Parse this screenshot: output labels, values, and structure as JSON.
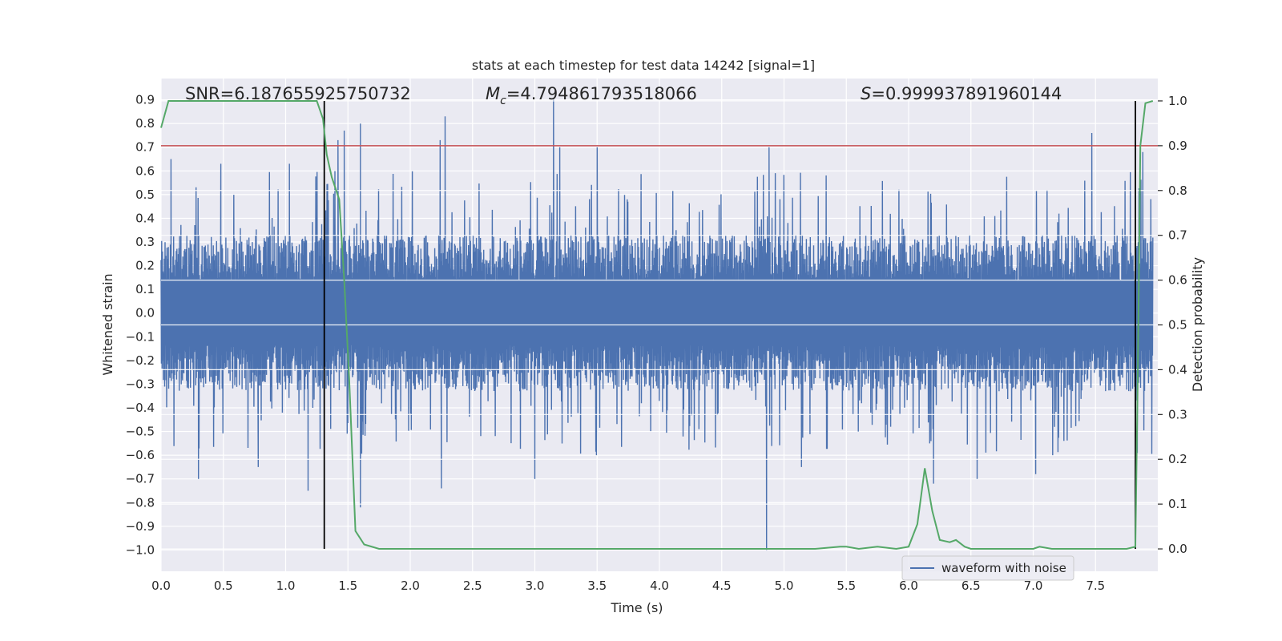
{
  "chart_data": {
    "type": "line",
    "title": "stats at each timestep for test data 14242 [signal=1]",
    "xlabel": "Time (s)",
    "ylabel_left": "Whitened strain",
    "ylabel_right": "Detection probability",
    "xlim": [
      0.0,
      8.0
    ],
    "ylim_left": [
      -1.09,
      0.99
    ],
    "ylim_right": [
      -0.05,
      1.05
    ],
    "x_ticks": [
      "0.0",
      "0.5",
      "1.0",
      "1.5",
      "2.0",
      "2.5",
      "3.0",
      "3.5",
      "4.0",
      "4.5",
      "5.0",
      "5.5",
      "6.0",
      "6.5",
      "7.0",
      "7.5"
    ],
    "y_ticks_left": [
      "0.9",
      "0.8",
      "0.7",
      "0.6",
      "0.5",
      "0.4",
      "0.3",
      "0.2",
      "0.1",
      "0.0",
      "−0.1",
      "−0.2",
      "−0.3",
      "−0.4",
      "−0.5",
      "−0.6",
      "−0.7",
      "−0.8",
      "−0.9",
      "−1.0"
    ],
    "y_ticks_right": [
      "1.0",
      "0.9",
      "0.8",
      "0.7",
      "0.6",
      "0.5",
      "0.4",
      "0.3",
      "0.2",
      "0.1",
      "0.0"
    ],
    "grid": true,
    "annotations": {
      "snr": "SNR=6.187655925750732",
      "mc_symbol": "M",
      "mc_sub": "c",
      "mc_value": "=4.794861793518066",
      "s_symbol": "S",
      "s_value": "=0.999937891960144"
    },
    "threshold_probability": 0.9,
    "vertical_markers_s": [
      1.31,
      7.82
    ],
    "waveform": {
      "name": "waveform with noise",
      "color": "#4c72b0",
      "typical_amplitude": 0.3,
      "max": 0.9,
      "min": -1.0,
      "spikes": [
        {
          "t": 0.08,
          "v": 0.65
        },
        {
          "t": 0.3,
          "v": -0.7
        },
        {
          "t": 0.48,
          "v": 0.63
        },
        {
          "t": 0.78,
          "v": -0.65
        },
        {
          "t": 1.03,
          "v": 0.63
        },
        {
          "t": 1.18,
          "v": -0.75
        },
        {
          "t": 1.31,
          "v": -0.6
        },
        {
          "t": 1.42,
          "v": 0.73
        },
        {
          "t": 1.47,
          "v": 0.77
        },
        {
          "t": 1.6,
          "v": 0.8
        },
        {
          "t": 1.6,
          "v": -0.82
        },
        {
          "t": 2.24,
          "v": 0.73
        },
        {
          "t": 2.28,
          "v": 0.83
        },
        {
          "t": 2.25,
          "v": -0.74
        },
        {
          "t": 3.0,
          "v": -0.7
        },
        {
          "t": 3.15,
          "v": 0.9
        },
        {
          "t": 3.2,
          "v": 0.7
        },
        {
          "t": 3.5,
          "v": 0.7
        },
        {
          "t": 4.88,
          "v": 0.7
        },
        {
          "t": 4.86,
          "v": -1.0
        },
        {
          "t": 5.14,
          "v": -0.65
        },
        {
          "t": 6.2,
          "v": -0.72
        },
        {
          "t": 6.55,
          "v": -0.7
        },
        {
          "t": 7.02,
          "v": -0.68
        },
        {
          "t": 7.47,
          "v": 0.76
        },
        {
          "t": 7.88,
          "v": 0.68
        }
      ]
    },
    "probability_series": {
      "name": "detection probability",
      "color": "#55a868",
      "x": [
        0.0,
        0.06,
        0.5,
        1.0,
        1.2,
        1.25,
        1.3,
        1.33,
        1.37,
        1.43,
        1.47,
        1.51,
        1.56,
        1.63,
        1.75,
        2.0,
        2.25,
        2.5,
        2.75,
        3.0,
        3.5,
        3.75,
        4.0,
        4.5,
        4.85,
        5.0,
        5.25,
        5.45,
        5.5,
        5.6,
        5.75,
        5.9,
        6.0,
        6.07,
        6.13,
        6.19,
        6.25,
        6.33,
        6.38,
        6.45,
        6.5,
        6.75,
        7.0,
        7.05,
        7.15,
        7.5,
        7.75,
        7.82,
        7.84,
        7.86,
        7.9,
        7.96
      ],
      "y": [
        0.94,
        1.0,
        1.0,
        1.0,
        1.0,
        1.0,
        0.96,
        0.88,
        0.83,
        0.78,
        0.6,
        0.38,
        0.04,
        0.01,
        0.0,
        0.0,
        0.0,
        0.0,
        0.0,
        0.0,
        0.0,
        0.0,
        0.0,
        0.0,
        0.0,
        0.0,
        0.0,
        0.005,
        0.005,
        0.0,
        0.005,
        0.0,
        0.005,
        0.055,
        0.18,
        0.085,
        0.02,
        0.015,
        0.02,
        0.005,
        0.0,
        0.0,
        0.0,
        0.005,
        0.0,
        0.0,
        0.0,
        0.005,
        0.4,
        0.9,
        0.995,
        1.0
      ]
    },
    "legend": {
      "position": "lower right",
      "entries": [
        "waveform with noise"
      ]
    }
  }
}
